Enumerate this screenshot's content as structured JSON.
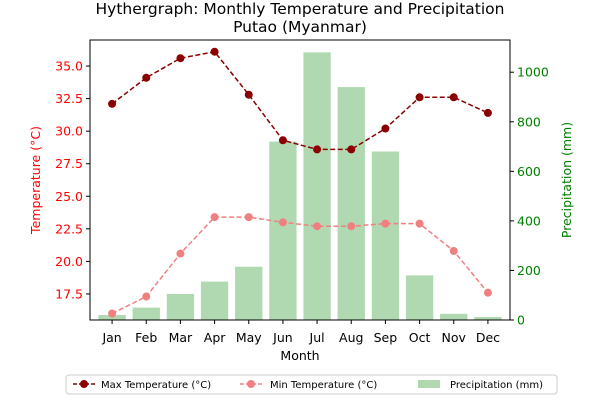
{
  "chart_data": {
    "type": "bar+line",
    "title": "Hythergraph: Monthly Temperature and Precipitation",
    "subtitle": "Putao (Myanmar)",
    "xlabel": "Month",
    "ylabel_left": "Temperature (°C)",
    "ylabel_right": "Precipitation (mm)",
    "categories": [
      "Jan",
      "Feb",
      "Mar",
      "Apr",
      "May",
      "Jun",
      "Jul",
      "Aug",
      "Sep",
      "Oct",
      "Nov",
      "Dec"
    ],
    "ylim_left": [
      15.5,
      37.0
    ],
    "ylim_right": [
      0,
      1130
    ],
    "yticks_left": [
      "17.5",
      "20.0",
      "22.5",
      "25.0",
      "27.5",
      "30.0",
      "32.5",
      "35.0"
    ],
    "yticks_right": [
      "0",
      "200",
      "400",
      "600",
      "800",
      "1000"
    ],
    "series": [
      {
        "name": "Max Temperature (°C)",
        "kind": "line",
        "axis": "left",
        "color": "#8b0000",
        "values": [
          32.1,
          34.1,
          35.6,
          36.1,
          32.8,
          29.3,
          28.6,
          28.6,
          30.2,
          32.6,
          32.6,
          31.4
        ]
      },
      {
        "name": "Min Temperature (°C)",
        "kind": "line",
        "axis": "left",
        "color": "#f08080",
        "values": [
          16.0,
          17.3,
          20.6,
          23.4,
          23.4,
          23.0,
          22.7,
          22.7,
          22.9,
          22.9,
          20.8,
          17.6
        ]
      },
      {
        "name": "Precipitation (mm)",
        "kind": "bar",
        "axis": "right",
        "color": "#b0d9b1",
        "values": [
          20,
          50,
          105,
          155,
          215,
          720,
          1080,
          940,
          680,
          180,
          25,
          12
        ]
      }
    ],
    "legend_position": "bottom-center",
    "grid": false
  },
  "colors": {
    "left_axis": "#ff0000",
    "right_axis": "#008000"
  }
}
